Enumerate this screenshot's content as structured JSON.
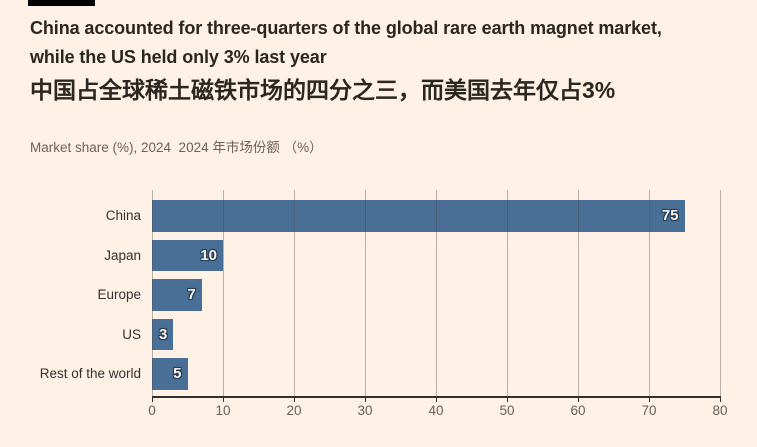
{
  "header": {
    "tag_color": "#000000",
    "title_line1": "China accounted for three-quarters of the global rare earth magnet market,",
    "title_line2": "while the US held only 3% last year",
    "title_zh": "中国占全球稀土磁铁市场的四分之三，而美国去年仅占3%",
    "subtitle": "Market share (%), 2024  2024 年市场份额 （%）"
  },
  "colors": {
    "background": "#fff1e5",
    "bar": "#4a6f96",
    "value_label_text": "#fff1e5",
    "value_label_halo": "#1f3d5c",
    "axis": "#33302e"
  },
  "chart_data": {
    "type": "bar",
    "orientation": "horizontal",
    "title": "China accounted for three-quarters of the global rare earth magnet market, while the US held only 3% last year",
    "title_zh": "中国占全球稀土磁铁市场的四分之三，而美国去年仅占3%",
    "xlabel": "Market share (%), 2024",
    "xlabel_zh": "2024 年市场份额 （%）",
    "categories": [
      "China",
      "Japan",
      "Europe",
      "US",
      "Rest of the world"
    ],
    "values": [
      75,
      10,
      7,
      3,
      5
    ],
    "value_labels": [
      "75",
      "10",
      "7",
      "3",
      "5"
    ],
    "xlim": [
      0,
      80
    ],
    "xticks": [
      0,
      10,
      20,
      30,
      40,
      50,
      60,
      70,
      80
    ],
    "grid": "vertical",
    "legend": "none"
  }
}
